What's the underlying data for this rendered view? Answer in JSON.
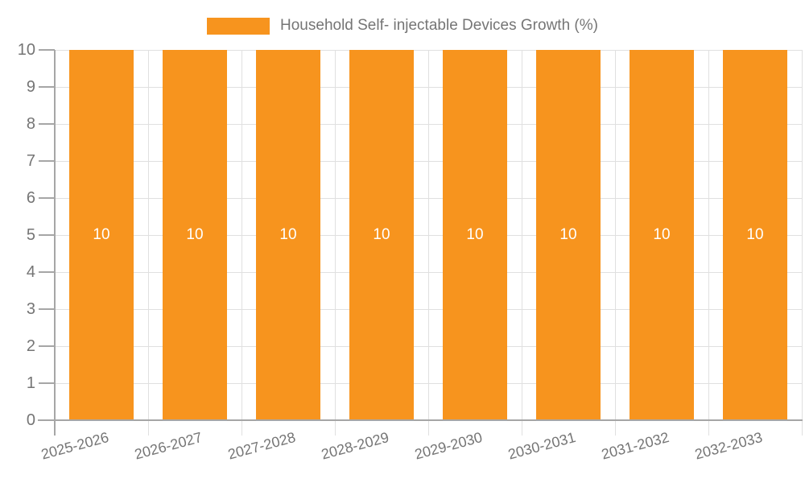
{
  "legend": {
    "label": "Household Self- injectable Devices Growth (%)"
  },
  "colors": {
    "bar": "#f7941e",
    "axis": "#a6a6a6",
    "grid": "#e0e0e0",
    "text": "#757575",
    "bar_label": "#ffffff",
    "background": "#ffffff"
  },
  "chart_data": {
    "type": "bar",
    "title": "",
    "xlabel": "",
    "ylabel": "",
    "categories": [
      "2025-2026",
      "2026-2027",
      "2027-2028",
      "2028-2029",
      "2029-2030",
      "2030-2031",
      "2031-2032",
      "2032-2033"
    ],
    "series": [
      {
        "name": "Household Self- injectable Devices Growth (%)",
        "values": [
          10,
          10,
          10,
          10,
          10,
          10,
          10,
          10
        ],
        "data_labels": [
          "10",
          "10",
          "10",
          "10",
          "10",
          "10",
          "10",
          "10"
        ]
      }
    ],
    "ylim": [
      0,
      10
    ],
    "y_ticks": [
      0,
      1,
      2,
      3,
      4,
      5,
      6,
      7,
      8,
      9,
      10
    ],
    "y_tick_labels": [
      "0",
      "1",
      "2",
      "3",
      "4",
      "5",
      "6",
      "7",
      "8",
      "9",
      "10"
    ],
    "grid": "on",
    "legend_position": "top-center",
    "x_tick_label_rotation_deg": -15
  }
}
